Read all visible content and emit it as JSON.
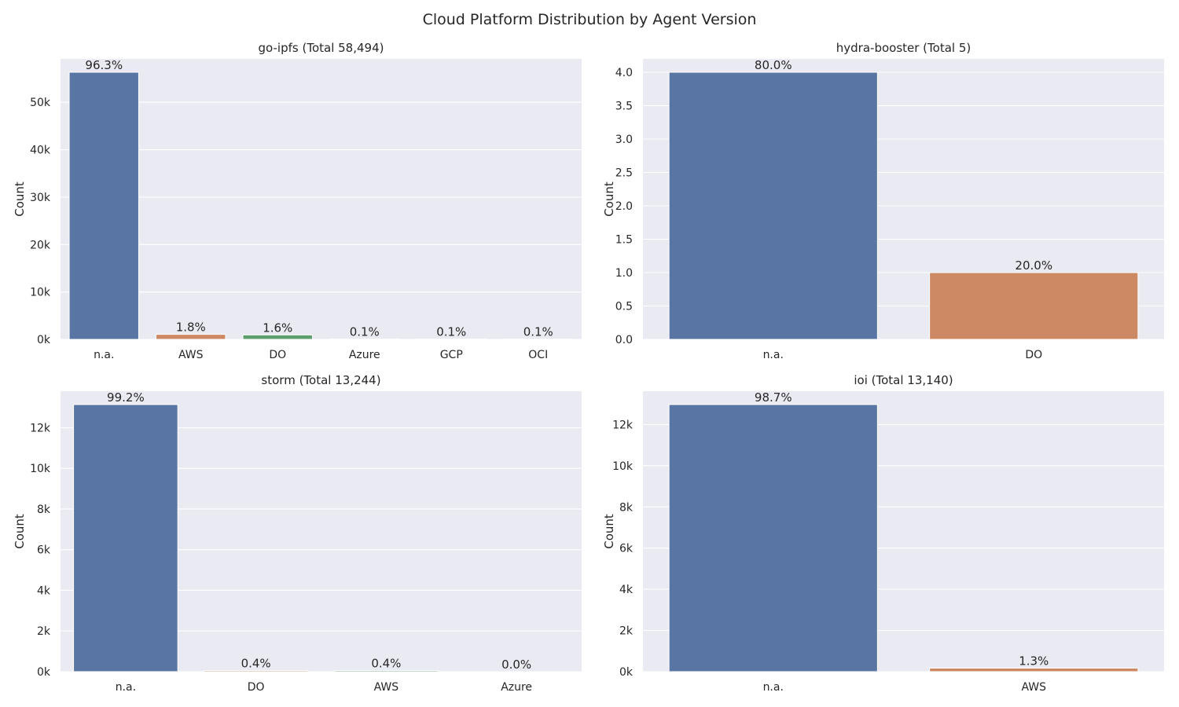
{
  "figure": {
    "title": "Cloud Platform Distribution by Agent Version"
  },
  "colors": {
    "background": "#eaeaf2",
    "grid": "#ffffff",
    "palette": [
      "#5975a4",
      "#cc8963",
      "#5f9e6e",
      "#b55d60",
      "#857aab",
      "#8d7866"
    ]
  },
  "chart_data": [
    {
      "type": "bar",
      "title": "go-ipfs (Total 58,494)",
      "xlabel": "",
      "ylabel": "Count",
      "categories": [
        "n.a.",
        "AWS",
        "DO",
        "Azure",
        "GCP",
        "OCI"
      ],
      "values": [
        56330,
        1053,
        936,
        58,
        58,
        58
      ],
      "labels": [
        "96.3%",
        "1.8%",
        "1.6%",
        "0.1%",
        "0.1%",
        "0.1%"
      ],
      "ylim": [
        0,
        59145
      ],
      "yticks": [
        0,
        10000,
        20000,
        30000,
        40000,
        50000
      ],
      "ytick_labels": [
        "0k",
        "10k",
        "20k",
        "30k",
        "40k",
        "50k"
      ],
      "grid": true
    },
    {
      "type": "bar",
      "title": "hydra-booster (Total 5)",
      "xlabel": "",
      "ylabel": "Count",
      "categories": [
        "n.a.",
        "DO"
      ],
      "values": [
        4,
        1
      ],
      "labels": [
        "80.0%",
        "20.0%"
      ],
      "ylim": [
        0,
        4.2
      ],
      "yticks": [
        0,
        0.5,
        1,
        1.5,
        2,
        2.5,
        3,
        3.5,
        4
      ],
      "ytick_labels": [
        "0.0",
        "0.5",
        "1.0",
        "1.5",
        "2.0",
        "2.5",
        "3.0",
        "3.5",
        "4.0"
      ],
      "grid": true
    },
    {
      "type": "bar",
      "title": "storm (Total 13,244)",
      "xlabel": "",
      "ylabel": "Count",
      "categories": [
        "n.a.",
        "DO",
        "AWS",
        "Azure"
      ],
      "values": [
        13138,
        53,
        53,
        0
      ],
      "labels": [
        "99.2%",
        "0.4%",
        "0.4%",
        "0.0%"
      ],
      "ylim": [
        0,
        13795
      ],
      "yticks": [
        0,
        2000,
        4000,
        6000,
        8000,
        10000,
        12000
      ],
      "ytick_labels": [
        "0k",
        "2k",
        "4k",
        "6k",
        "8k",
        "10k",
        "12k"
      ],
      "grid": true
    },
    {
      "type": "bar",
      "title": "ioi (Total 13,140)",
      "xlabel": "",
      "ylabel": "Count",
      "categories": [
        "n.a.",
        "AWS"
      ],
      "values": [
        12969,
        171
      ],
      "labels": [
        "98.7%",
        "1.3%"
      ],
      "ylim": [
        0,
        13617
      ],
      "yticks": [
        0,
        2000,
        4000,
        6000,
        8000,
        10000,
        12000
      ],
      "ytick_labels": [
        "0k",
        "2k",
        "4k",
        "6k",
        "8k",
        "10k",
        "12k"
      ],
      "grid": true
    }
  ]
}
